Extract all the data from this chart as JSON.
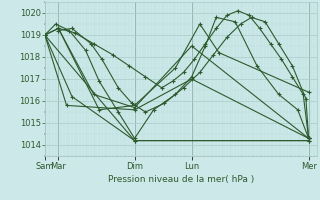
{
  "background_color": "#cce8e8",
  "plot_bg_color": "#cce8e8",
  "line_color": "#2d5a2d",
  "grid_color_major": "#aacccc",
  "grid_color_minor": "#bbdddd",
  "ylim": [
    1013.5,
    1020.5
  ],
  "yticks": [
    1014,
    1015,
    1016,
    1017,
    1018,
    1019,
    1020
  ],
  "xlabel": "Pression niveau de la mer( hPa )",
  "xtick_labels": [
    "Sam",
    "Mar",
    "Dim",
    "Lun",
    "Mer"
  ],
  "xtick_positions": [
    0.0,
    0.05,
    0.33,
    0.54,
    0.97
  ],
  "series": [
    {
      "x": [
        0.0,
        0.33,
        0.97
      ],
      "y": [
        1019.0,
        1014.2,
        1014.2
      ]
    },
    {
      "x": [
        0.0,
        0.1,
        0.33,
        0.97
      ],
      "y": [
        1019.0,
        1016.2,
        1014.2,
        1014.2
      ]
    },
    {
      "x": [
        0.0,
        0.08,
        0.33,
        0.54,
        0.97
      ],
      "y": [
        1019.0,
        1015.8,
        1015.6,
        1017.0,
        1014.3
      ]
    },
    {
      "x": [
        0.0,
        0.05,
        0.18,
        0.33,
        0.54,
        0.97
      ],
      "y": [
        1019.0,
        1019.3,
        1016.3,
        1015.7,
        1018.5,
        1014.3
      ]
    },
    {
      "x": [
        0.0,
        0.05,
        0.2,
        0.33,
        0.48,
        0.57,
        0.64,
        0.97
      ],
      "y": [
        1019.0,
        1019.3,
        1015.6,
        1015.8,
        1017.5,
        1019.5,
        1018.2,
        1016.4
      ]
    },
    {
      "x": [
        0.0,
        0.04,
        0.09,
        0.15,
        0.2,
        0.27,
        0.33,
        0.4,
        0.48,
        0.54,
        0.59,
        0.63,
        0.7,
        0.78,
        0.86,
        0.93,
        0.97
      ],
      "y": [
        1019.0,
        1019.5,
        1019.2,
        1018.3,
        1016.9,
        1015.5,
        1014.3,
        1015.6,
        1016.3,
        1017.1,
        1018.5,
        1019.8,
        1019.6,
        1017.6,
        1016.3,
        1015.6,
        1014.3
      ]
    },
    {
      "x": [
        0.05,
        0.1,
        0.17,
        0.21,
        0.27,
        0.32,
        0.37,
        0.44,
        0.51,
        0.57,
        0.62,
        0.67,
        0.72,
        0.76,
        0.81,
        0.86,
        0.91,
        0.96,
        0.97
      ],
      "y": [
        1019.2,
        1019.3,
        1018.6,
        1017.9,
        1016.6,
        1015.9,
        1015.5,
        1015.9,
        1016.6,
        1017.3,
        1018.1,
        1018.9,
        1019.5,
        1019.8,
        1019.6,
        1018.6,
        1017.6,
        1016.1,
        1014.3
      ]
    },
    {
      "x": [
        0.05,
        0.11,
        0.18,
        0.25,
        0.31,
        0.37,
        0.43,
        0.47,
        0.51,
        0.55,
        0.59,
        0.63,
        0.67,
        0.71,
        0.75,
        0.79,
        0.83,
        0.87,
        0.91,
        0.95,
        0.97
      ],
      "y": [
        1019.3,
        1019.1,
        1018.6,
        1018.1,
        1017.6,
        1017.1,
        1016.6,
        1016.9,
        1017.3,
        1017.9,
        1018.6,
        1019.3,
        1019.9,
        1020.1,
        1019.9,
        1019.3,
        1018.6,
        1017.9,
        1017.1,
        1016.3,
        1014.3
      ]
    }
  ]
}
